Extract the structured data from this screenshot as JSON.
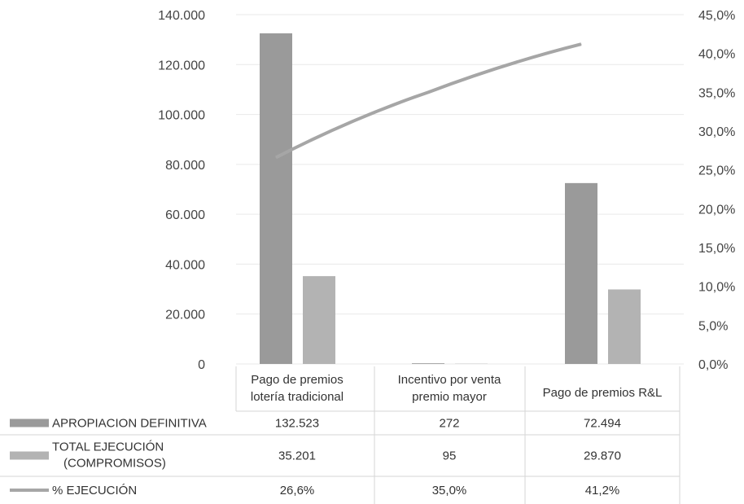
{
  "chart_data": {
    "type": "bar",
    "categories": [
      [
        "Pago de premios",
        "lotería tradicional"
      ],
      [
        "Incentivo por venta",
        "premio mayor"
      ],
      [
        "Pago de premios R&L"
      ]
    ],
    "series": [
      {
        "name": "APROPIACION DEFINITIVA",
        "type": "bar",
        "axis": "left",
        "values": [
          132523,
          272,
          72494
        ],
        "labels": [
          "132.523",
          "272",
          "72.494"
        ],
        "color": "#9a9a9a"
      },
      {
        "name": [
          "TOTAL EJECUCIÓN",
          "(COMPROMISOS)"
        ],
        "type": "bar",
        "axis": "left",
        "values": [
          35201,
          95,
          29870
        ],
        "labels": [
          "35.201",
          "95",
          "29.870"
        ],
        "color": "#b3b3b3"
      },
      {
        "name": "% EJECUCIÓN",
        "type": "line",
        "axis": "right",
        "values": [
          26.6,
          35.0,
          41.2
        ],
        "labels": [
          "26,6%",
          "35,0%",
          "41,2%"
        ],
        "color": "#a6a6a6"
      }
    ],
    "y_left": {
      "range": [
        0,
        140000
      ],
      "ticks": [
        0,
        20000,
        40000,
        60000,
        80000,
        100000,
        120000,
        140000
      ],
      "tick_labels": [
        "0",
        "20.000",
        "40.000",
        "60.000",
        "80.000",
        "100.000",
        "120.000",
        "140.000"
      ]
    },
    "y_right": {
      "range": [
        0,
        45
      ],
      "ticks": [
        0,
        5,
        10,
        15,
        20,
        25,
        30,
        35,
        40,
        45
      ],
      "tick_labels": [
        "0,0%",
        "5,0%",
        "10,0%",
        "15,0%",
        "20,0%",
        "25,0%",
        "30,0%",
        "35,0%",
        "40,0%",
        "45,0%"
      ]
    },
    "grid": true,
    "legend": "data-table-below"
  }
}
